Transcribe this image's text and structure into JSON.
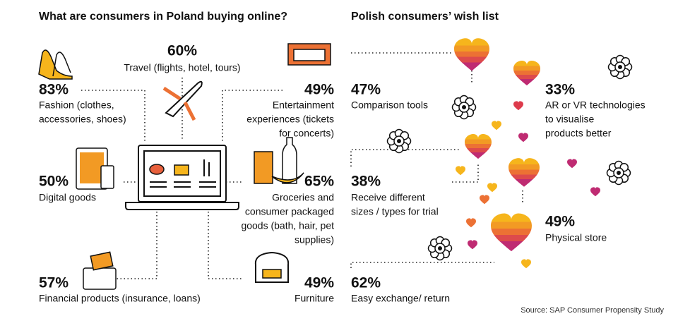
{
  "left": {
    "title": "What are consumers in Poland buying online?",
    "items": [
      {
        "percent": "60%",
        "lines": [
          "Travel (flights, hotel, tours)"
        ]
      },
      {
        "percent": "83%",
        "lines": [
          "Fashion (clothes,",
          "accessories, shoes)"
        ]
      },
      {
        "percent": "49%",
        "lines": [
          "Entertainment",
          "experiences (tickets",
          "for concerts)"
        ]
      },
      {
        "percent": "50%",
        "lines": [
          "Digital goods"
        ]
      },
      {
        "percent": "65%",
        "lines": [
          "Groceries and",
          "consumer packaged",
          "goods (bath, hair, pet",
          "supplies)"
        ]
      },
      {
        "percent": "57%",
        "lines": [
          "Financial products (insurance, loans)"
        ]
      },
      {
        "percent": "49%",
        "lines": [
          "Furniture"
        ]
      }
    ]
  },
  "right": {
    "title": "Polish consumers’ wish list",
    "items": [
      {
        "percent": "47%",
        "lines": [
          "Comparison tools"
        ]
      },
      {
        "percent": "33%",
        "lines": [
          "AR or VR technologies",
          "to visualise",
          "products better"
        ]
      },
      {
        "percent": "38%",
        "lines": [
          "Receive different",
          "sizes / types for trial"
        ]
      },
      {
        "percent": "49%",
        "lines": [
          "Physical store"
        ]
      },
      {
        "percent": "62%",
        "lines": [
          "Easy exchange/ return"
        ]
      }
    ]
  },
  "source": "Source: SAP Consumer Propensity Study"
}
